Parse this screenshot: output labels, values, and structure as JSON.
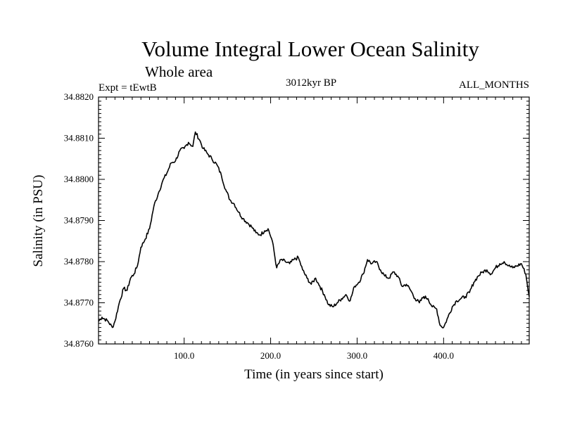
{
  "chart_data": {
    "type": "line",
    "title": "Volume Integral Lower Ocean Salinity",
    "subtitle": "Whole area",
    "experiment": "Expt = tEwtB",
    "period": "3012kyr BP",
    "season": "ALL_MONTHS",
    "xlabel": "Time (in years since start)",
    "ylabel": "Salinity (in PSU)",
    "xlim": [
      1,
      499
    ],
    "ylim": [
      34.876,
      34.882
    ],
    "xticks": [
      100,
      200,
      300,
      400
    ],
    "xtick_labels": [
      "100.0",
      "200.0",
      "300.0",
      "400.0"
    ],
    "yticks": [
      34.876,
      34.877,
      34.878,
      34.879,
      34.88,
      34.881,
      34.882
    ],
    "ytick_labels": [
      "34.8760",
      "34.8770",
      "34.8780",
      "34.8790",
      "34.8800",
      "34.8810",
      "34.8820"
    ],
    "series": [
      {
        "name": "Salinity",
        "x": [
          1,
          5,
          12,
          17,
          20,
          25,
          30,
          34,
          38,
          42,
          46,
          50,
          55,
          60,
          65,
          70,
          75,
          80,
          85,
          90,
          95,
          100,
          105,
          110,
          113,
          118,
          122,
          128,
          132,
          138,
          143,
          148,
          153,
          158,
          163,
          168,
          173,
          178,
          183,
          188,
          193,
          197,
          202,
          207,
          212,
          217,
          222,
          227,
          232,
          237,
          242,
          247,
          252,
          257,
          262,
          267,
          272,
          277,
          282,
          287,
          292,
          297,
          302,
          307,
          312,
          317,
          322,
          327,
          332,
          337,
          342,
          347,
          352,
          357,
          362,
          367,
          372,
          377,
          382,
          387,
          392,
          396,
          400,
          405,
          410,
          415,
          420,
          425,
          430,
          435,
          440,
          445,
          450,
          455,
          460,
          465,
          470,
          475,
          480,
          485,
          490,
          495,
          499
        ],
        "values": [
          34.87655,
          34.87665,
          34.87655,
          34.8764,
          34.87655,
          34.877,
          34.87735,
          34.8773,
          34.8776,
          34.8777,
          34.8779,
          34.87835,
          34.87855,
          34.8788,
          34.87935,
          34.87965,
          34.87995,
          34.88015,
          34.8804,
          34.88045,
          34.8807,
          34.88075,
          34.8809,
          34.8808,
          34.88115,
          34.88095,
          34.88075,
          34.8806,
          34.8805,
          34.88035,
          34.8801,
          34.87975,
          34.8795,
          34.8794,
          34.8792,
          34.87905,
          34.87895,
          34.87885,
          34.8787,
          34.87865,
          34.87875,
          34.8788,
          34.8785,
          34.87785,
          34.87805,
          34.878,
          34.87795,
          34.87805,
          34.8781,
          34.8778,
          34.8776,
          34.87745,
          34.8776,
          34.8774,
          34.8772,
          34.87695,
          34.8769,
          34.877,
          34.8771,
          34.8772,
          34.87705,
          34.8774,
          34.8775,
          34.8777,
          34.87805,
          34.87795,
          34.878,
          34.8778,
          34.87765,
          34.8776,
          34.87775,
          34.87765,
          34.8774,
          34.87745,
          34.8773,
          34.8771,
          34.877,
          34.87715,
          34.8771,
          34.8769,
          34.87685,
          34.87645,
          34.8764,
          34.87665,
          34.8769,
          34.87705,
          34.8771,
          34.87715,
          34.87725,
          34.8775,
          34.87765,
          34.87775,
          34.8778,
          34.8777,
          34.87785,
          34.87795,
          34.878,
          34.8779,
          34.87785,
          34.8779,
          34.87795,
          34.8777,
          34.87715
        ]
      }
    ],
    "line_color": "#000000"
  }
}
